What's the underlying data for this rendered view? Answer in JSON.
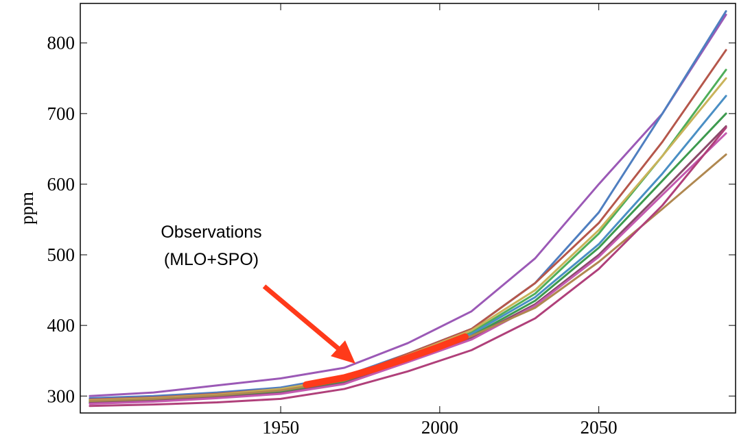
{
  "chart_data": {
    "type": "line",
    "ylabel": "ppm",
    "annotation": [
      "Observations",
      "(MLO+SPO)"
    ],
    "x": [
      1890,
      1910,
      1930,
      1950,
      1970,
      1990,
      2010,
      2030,
      2050,
      2070,
      2090
    ],
    "xlim": [
      1887,
      2093
    ],
    "ylim": [
      276,
      856
    ],
    "xticks": [
      1950,
      2000,
      2050
    ],
    "yticks": [
      300,
      400,
      500,
      600,
      700,
      800
    ],
    "series": [
      {
        "color": "#9b59b6",
        "values": [
          300,
          305,
          315,
          325,
          340,
          375,
          420,
          495,
          600,
          700,
          840
        ]
      },
      {
        "color": "#4f7fc0",
        "values": [
          297,
          300,
          305,
          312,
          328,
          360,
          395,
          460,
          560,
          700,
          845
        ]
      },
      {
        "color": "#b5574b",
        "values": [
          295,
          298,
          303,
          310,
          325,
          360,
          395,
          460,
          545,
          660,
          790
        ]
      },
      {
        "color": "#4fae5a",
        "values": [
          293,
          296,
          300,
          307,
          322,
          355,
          390,
          445,
          530,
          640,
          762
        ]
      },
      {
        "color": "#c9b35a",
        "values": [
          294,
          297,
          302,
          310,
          325,
          358,
          393,
          450,
          535,
          640,
          750
        ]
      },
      {
        "color": "#4a8fc4",
        "values": [
          292,
          295,
          300,
          306,
          320,
          353,
          388,
          440,
          515,
          615,
          725
        ]
      },
      {
        "color": "#3d9a4e",
        "values": [
          291,
          294,
          299,
          305,
          320,
          352,
          385,
          435,
          510,
          605,
          700
        ]
      },
      {
        "color": "#8a4a6a",
        "values": [
          290,
          293,
          298,
          304,
          318,
          350,
          383,
          430,
          500,
          590,
          682
        ]
      },
      {
        "color": "#c45ab0",
        "values": [
          289,
          292,
          297,
          303,
          317,
          348,
          380,
          428,
          497,
          585,
          672
        ]
      },
      {
        "color": "#b08850",
        "values": [
          293,
          296,
          301,
          308,
          322,
          353,
          385,
          425,
          490,
          565,
          642
        ]
      },
      {
        "color": "#b0407a",
        "values": [
          286,
          288,
          291,
          296,
          310,
          335,
          365,
          410,
          480,
          570,
          680
        ]
      }
    ],
    "observations": {
      "color": "#ff3a1a",
      "x": [
        1958,
        1970,
        1980,
        1990,
        2000,
        2008
      ],
      "values": [
        316,
        326,
        339,
        354,
        370,
        384
      ]
    }
  }
}
